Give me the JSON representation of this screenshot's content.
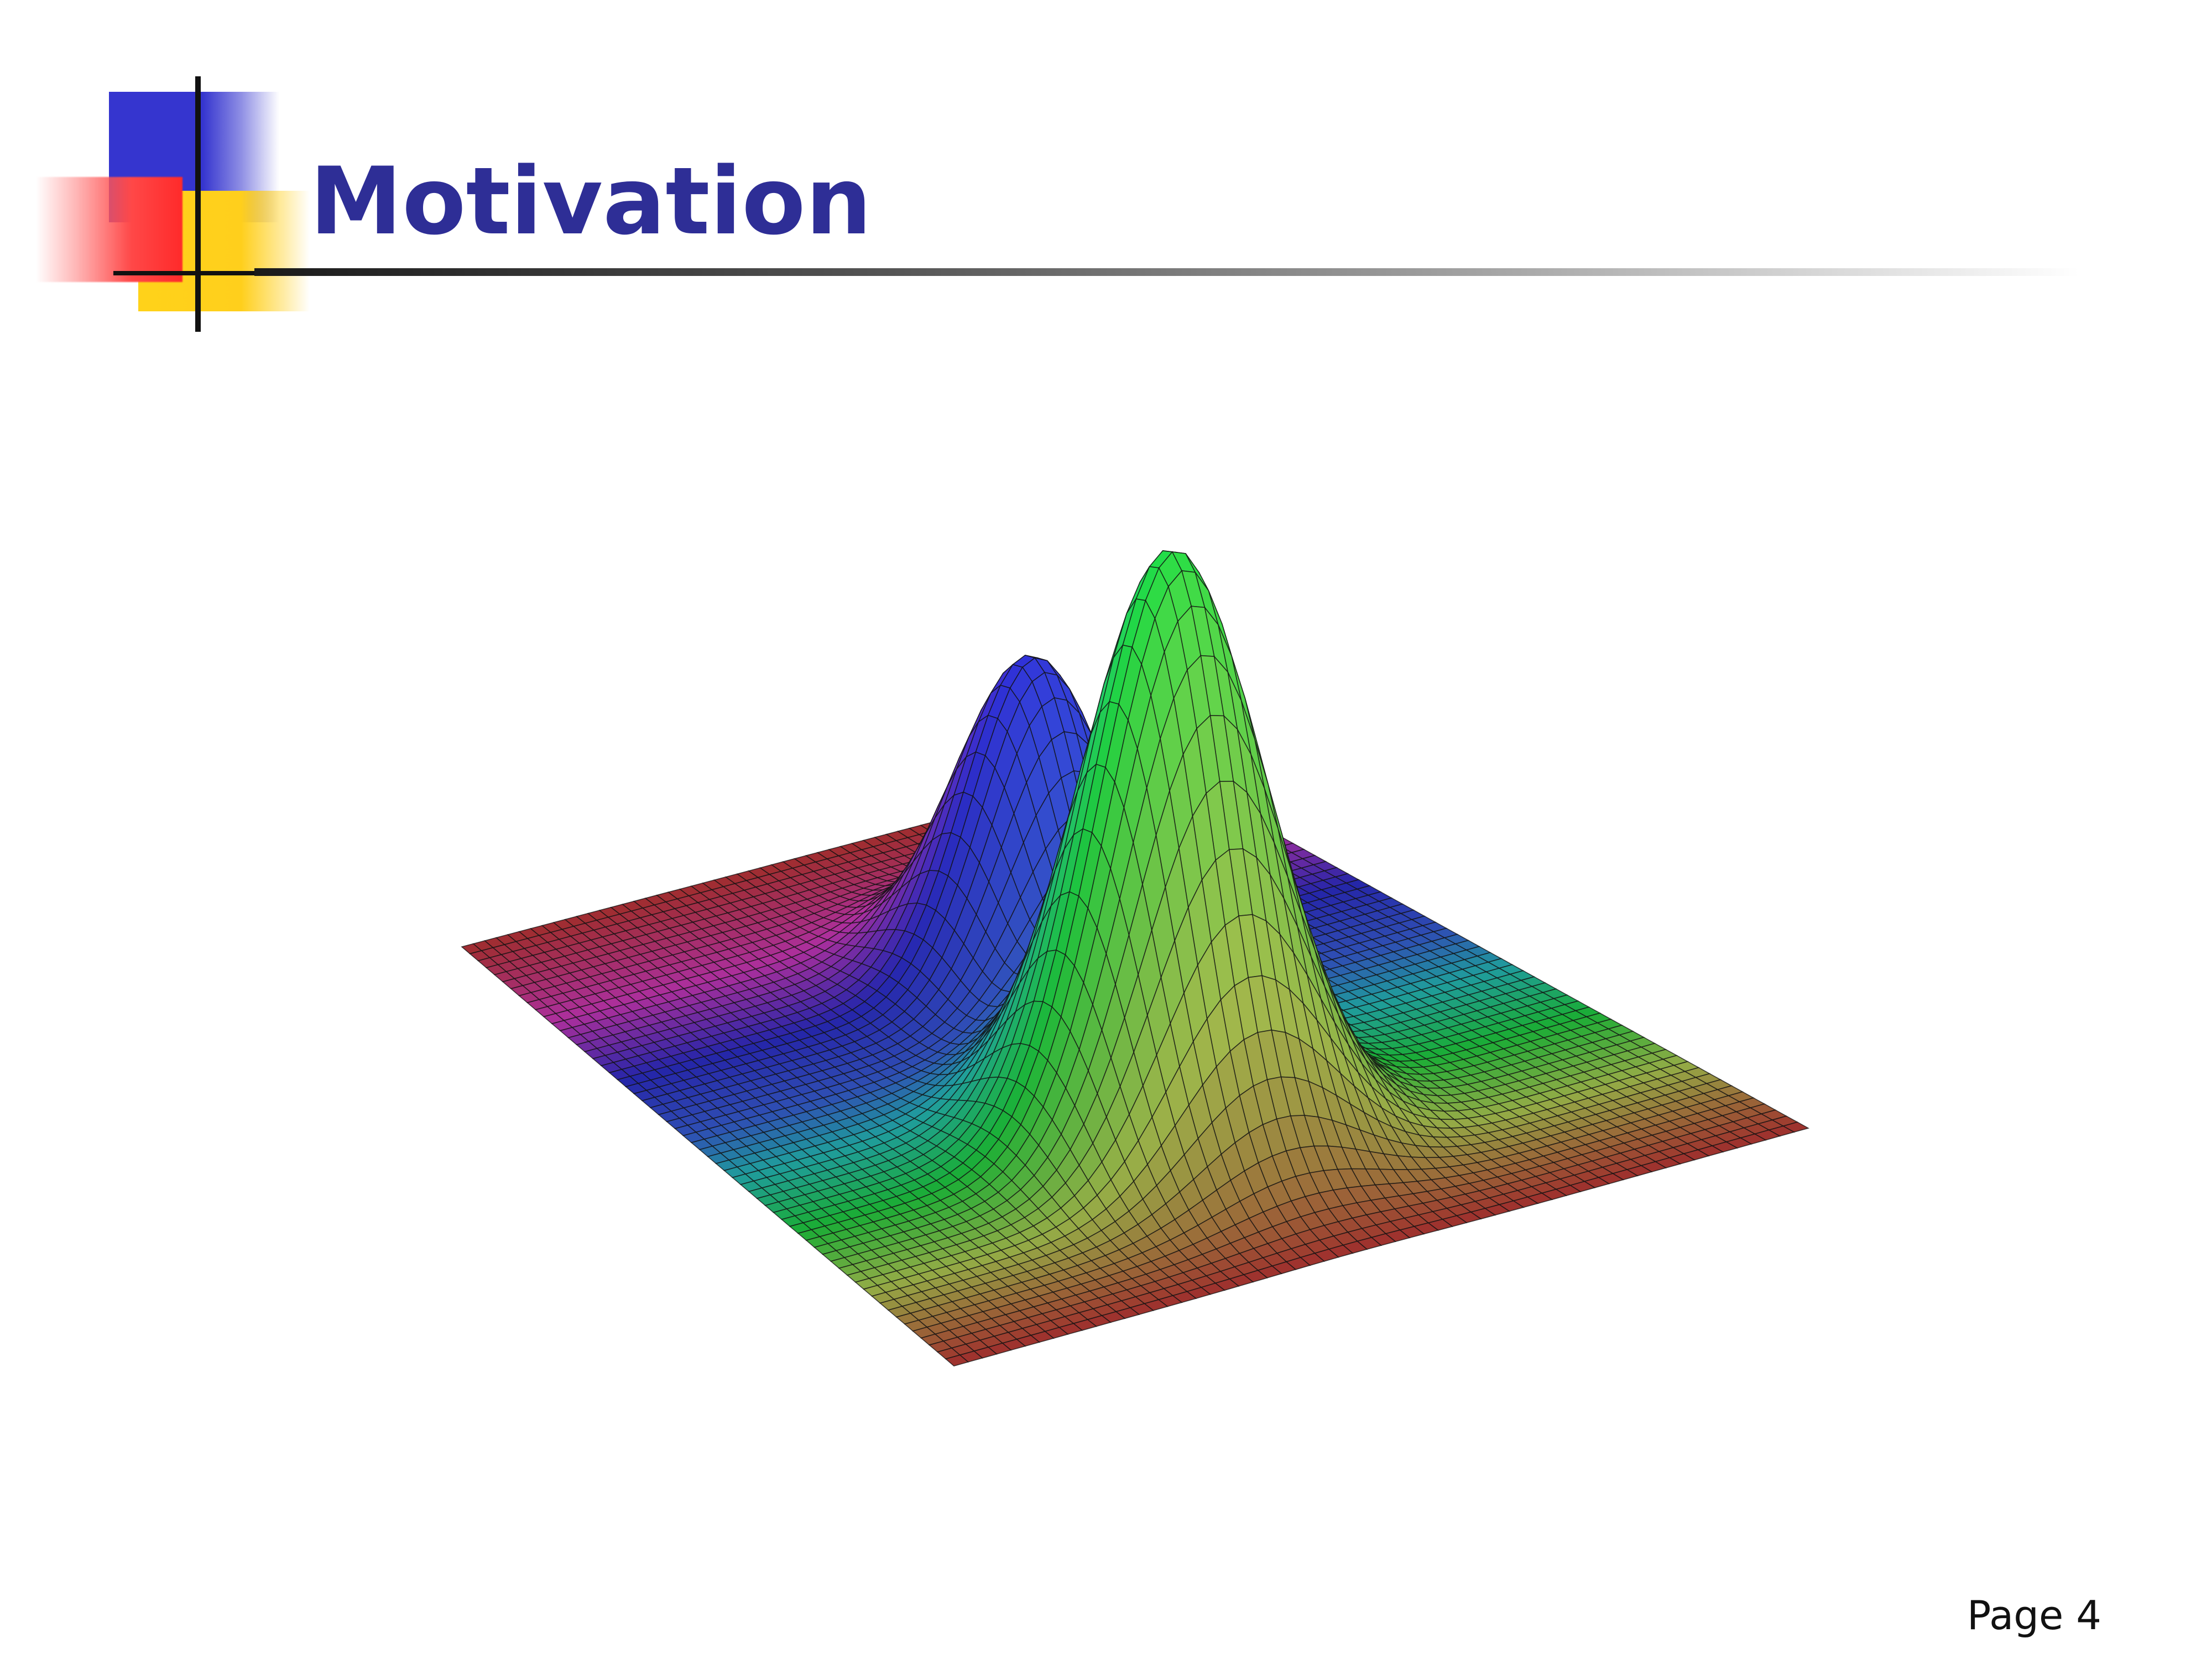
{
  "slide": {
    "title": "Motivation",
    "page_number": "Page 4"
  },
  "figure": {
    "surface_peaks": [
      {
        "color": "#3030d8",
        "relative_height": 0.55
      },
      {
        "color": "#22dd44",
        "relative_height": 1.0
      }
    ],
    "base_color": "#cc3a3a",
    "mesh_color": "#111111"
  },
  "theme": {
    "title_color": "#2e2e96",
    "logo_blue": "#3535cf",
    "logo_red": "#ff3a3a",
    "logo_yellow": "#ffcf1c"
  }
}
